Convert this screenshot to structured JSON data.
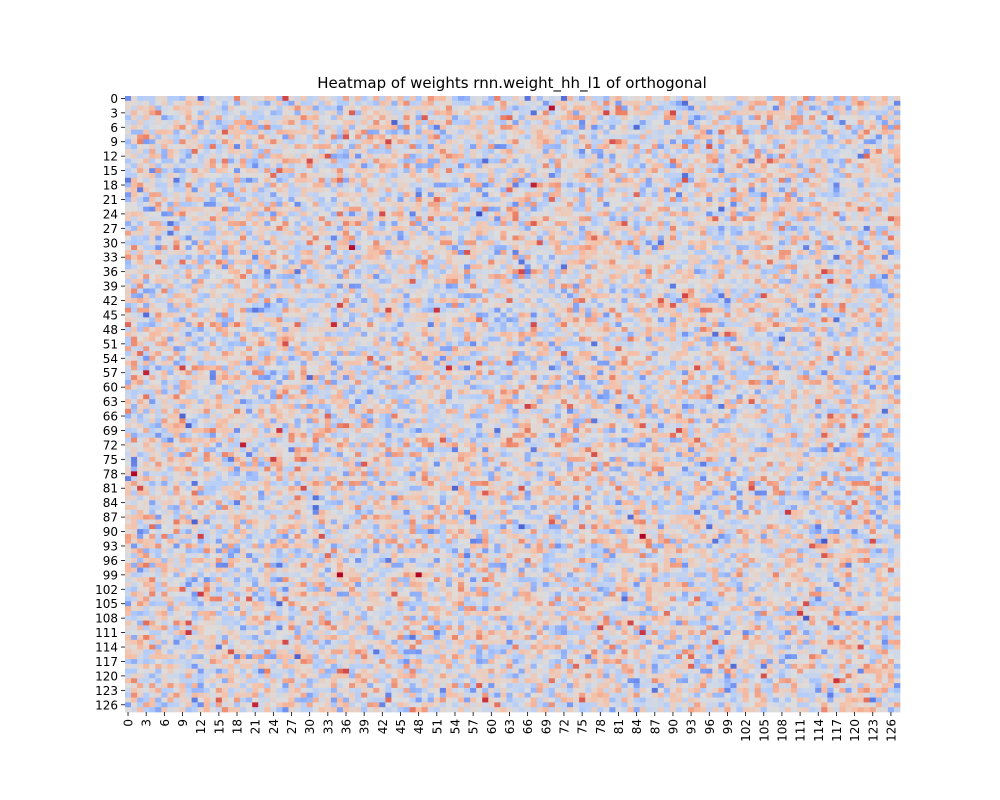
{
  "chart_data": {
    "type": "heatmap",
    "title": "Heatmap of weights rnn.weight_hh_l1 of orthogonal",
    "xlabel": "",
    "ylabel": "",
    "rows": 128,
    "cols": 128,
    "x_tick_labels": [
      "0",
      "3",
      "6",
      "9",
      "12",
      "15",
      "18",
      "21",
      "24",
      "27",
      "30",
      "33",
      "36",
      "39",
      "42",
      "45",
      "48",
      "51",
      "54",
      "57",
      "60",
      "63",
      "66",
      "69",
      "72",
      "75",
      "78",
      "81",
      "84",
      "87",
      "90",
      "93",
      "96",
      "99",
      "102",
      "105",
      "108",
      "111",
      "114",
      "117",
      "120",
      "123",
      "126"
    ],
    "y_tick_labels": [
      "0",
      "3",
      "6",
      "9",
      "12",
      "15",
      "18",
      "21",
      "24",
      "27",
      "30",
      "33",
      "36",
      "39",
      "42",
      "45",
      "48",
      "51",
      "54",
      "57",
      "60",
      "63",
      "66",
      "69",
      "72",
      "75",
      "78",
      "81",
      "84",
      "87",
      "90",
      "93",
      "96",
      "99",
      "102",
      "105",
      "108",
      "111",
      "114",
      "117",
      "120",
      "123",
      "126"
    ],
    "colormap": "coolwarm",
    "colormap_stops": [
      "#3b4cc0",
      "#7396f5",
      "#b0cbfc",
      "#dddddd",
      "#f6bfa6",
      "#ec8165",
      "#b40426"
    ],
    "value_range": [
      -0.3,
      0.3
    ],
    "colorbar": false,
    "grid": false,
    "values_note": "",
    "seed": 20240517
  }
}
